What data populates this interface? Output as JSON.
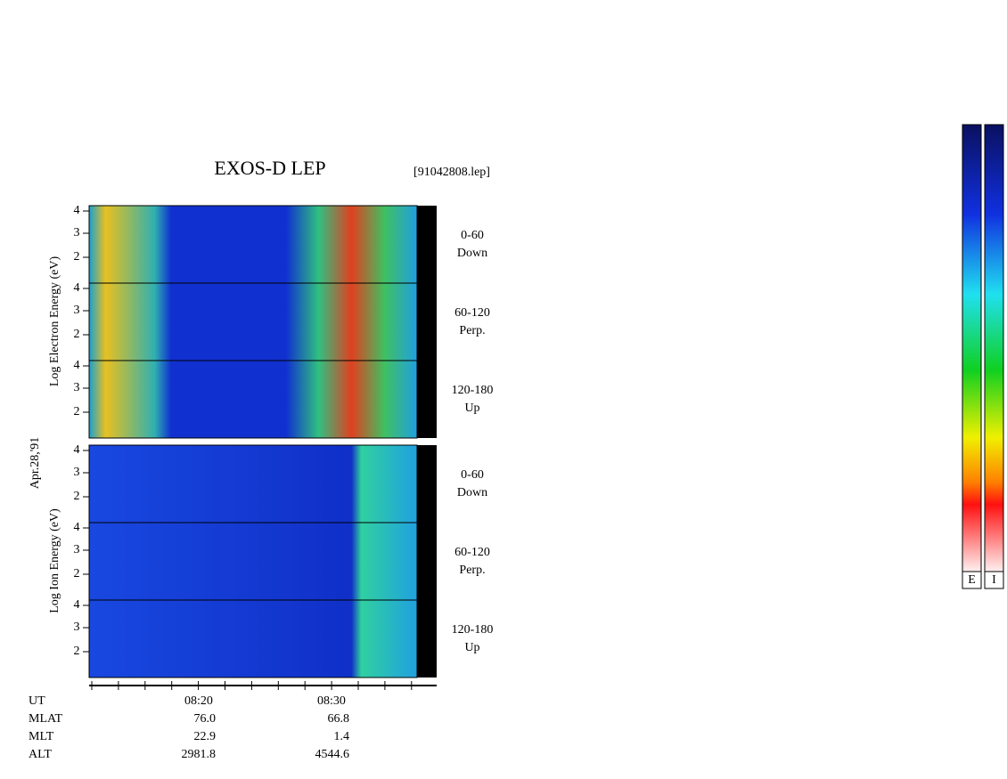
{
  "header": {
    "title": "EXOS-D LEP",
    "file": "[91042808.lep]"
  },
  "side_label": "Apr.28,'91",
  "groups": [
    {
      "axis_label": "Log Electron Energy (eV)",
      "panels": [
        {
          "ticks": [
            "4",
            "3",
            "2"
          ],
          "range": "0-60",
          "direction": "Down"
        },
        {
          "ticks": [
            "4",
            "3",
            "2"
          ],
          "range": "60-120",
          "direction": "Perp."
        },
        {
          "ticks": [
            "4",
            "3",
            "2"
          ],
          "range": "120-180",
          "direction": "Up"
        }
      ]
    },
    {
      "axis_label": "Log Ion Energy (eV)",
      "panels": [
        {
          "ticks": [
            "4",
            "3",
            "2"
          ],
          "range": "0-60",
          "direction": "Down"
        },
        {
          "ticks": [
            "4",
            "3",
            "2"
          ],
          "range": "60-120",
          "direction": "Perp."
        },
        {
          "ticks": [
            "4",
            "3",
            "2"
          ],
          "range": "120-180",
          "direction": "Up"
        }
      ]
    }
  ],
  "time_axis": {
    "ticks": [
      "08:20",
      "08:30"
    ]
  },
  "ephemeris": [
    {
      "label": "UT"
    },
    {
      "label": "MLAT",
      "values": [
        "76.0",
        "66.8"
      ]
    },
    {
      "label": "MLT",
      "values": [
        "22.9",
        "1.4"
      ]
    },
    {
      "label": "ALT",
      "values": [
        "2981.8",
        "4544.6"
      ]
    }
  ],
  "color_bars": [
    "E",
    "I"
  ]
}
